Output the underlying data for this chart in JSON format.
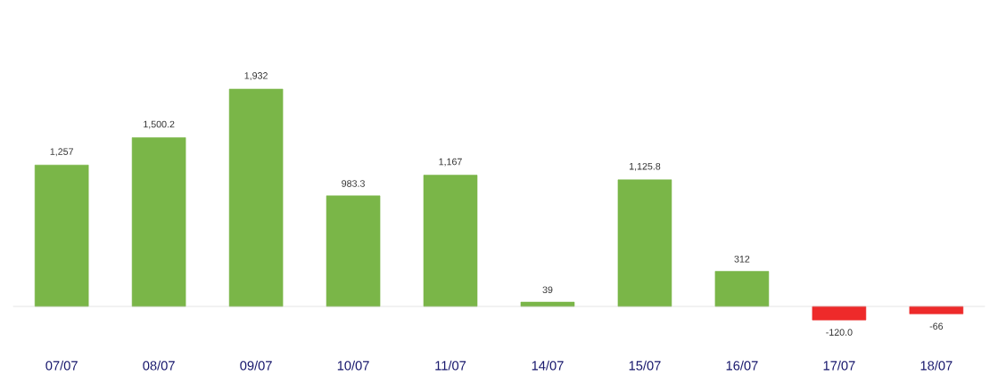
{
  "chart_data": {
    "type": "bar",
    "categories": [
      "07/07",
      "08/07",
      "09/07",
      "10/07",
      "11/07",
      "14/07",
      "15/07",
      "16/07",
      "17/07",
      "18/07"
    ],
    "values": [
      1257,
      1500.2,
      1932,
      983.3,
      1167,
      39,
      1125.8,
      312,
      -120.0,
      -66
    ],
    "colors": [
      "#7ab648",
      "#7ab648",
      "#7ab648",
      "#7ab648",
      "#7ab648",
      "#7ab648",
      "#7ab648",
      "#7ab648",
      "#ee2a2a",
      "#ee2a2a"
    ],
    "value_labels": [
      "1,257",
      "1,500.2",
      "1,932",
      "983.3",
      "1,167",
      "39",
      "1,125.8",
      "312",
      "-120.0",
      "-66"
    ]
  }
}
